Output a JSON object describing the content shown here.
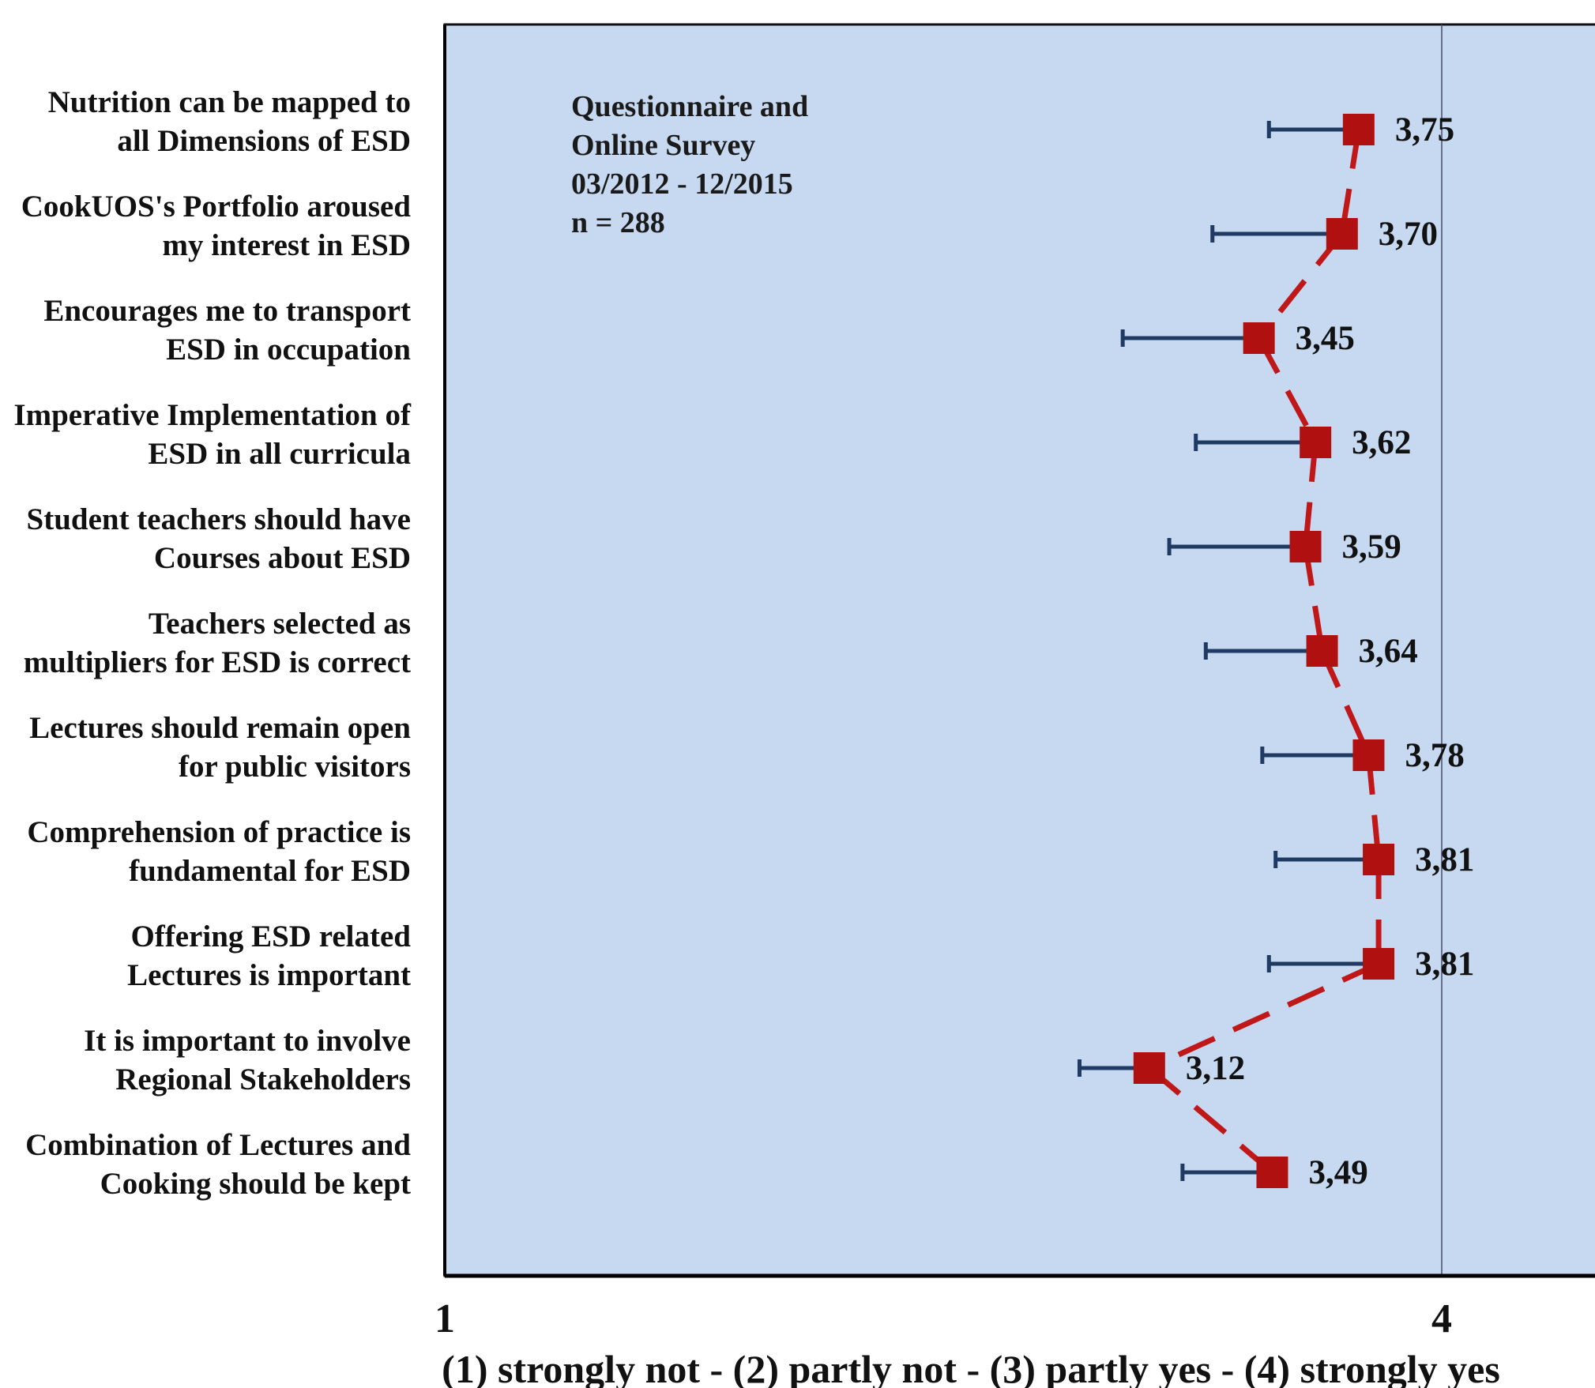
{
  "chart_data": {
    "type": "scatter",
    "title": "",
    "xlabel": "(1) strongly not - (2) partly not - (3) partly yes - (4) strongly yes",
    "ylabel": "",
    "xlim": [
      1,
      4
    ],
    "x_ticks": [
      "1",
      "4"
    ],
    "grid": false,
    "background_color": "#c6d9f1",
    "marker_color": "#b01010",
    "connector_color": "#c01818",
    "errorbar_color": "#1f3b63",
    "annotation": [
      "Questionnaire and",
      "Online Survey",
      "03/2012 - 12/2015",
      "n = 288"
    ],
    "categories": [
      [
        "Nutrition can be mapped to",
        "all Dimensions of ESD"
      ],
      [
        "CookUOS's Portfolio aroused",
        "my interest in ESD"
      ],
      [
        "Encourages me to transport",
        "ESD in occupation"
      ],
      [
        "Imperative Implementation of",
        "ESD in all curricula"
      ],
      [
        "Student teachers should have",
        "Courses about ESD"
      ],
      [
        "Teachers selected as",
        "multipliers for ESD is correct"
      ],
      [
        "Lectures should remain open",
        "for public visitors"
      ],
      [
        "Comprehension of practice is",
        "fundamental for ESD"
      ],
      [
        "Offering ESD related",
        "Lectures is important"
      ],
      [
        "It is important to involve",
        "Regional Stakeholders"
      ],
      [
        "Combination of Lectures and",
        "Cooking should be kept"
      ]
    ],
    "series": [
      {
        "values": [
          3.75,
          3.7,
          3.45,
          3.62,
          3.59,
          3.64,
          3.78,
          3.81,
          3.81,
          3.12,
          3.49
        ],
        "value_labels": [
          "3,75",
          "3,70",
          "3,45",
          "3,62",
          "3,59",
          "3,64",
          "3,78",
          "3,81",
          "3,81",
          "3,12",
          "3,49"
        ],
        "error_low": [
          3.48,
          3.31,
          3.04,
          3.26,
          3.18,
          3.29,
          3.46,
          3.5,
          3.48,
          2.91,
          3.22
        ]
      }
    ]
  }
}
